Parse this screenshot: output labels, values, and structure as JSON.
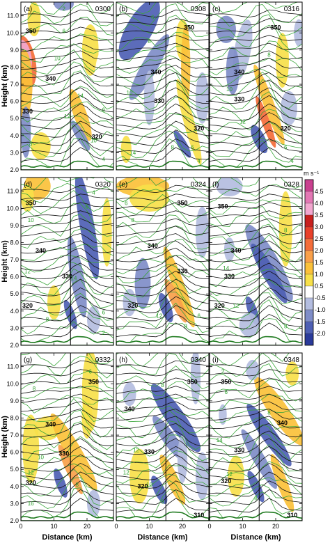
{
  "chart_data": {
    "type": "heatmap",
    "ylabel": "Height (km)",
    "xlabel": "Distance (km)",
    "y_ticks": [
      "2.0",
      "3.0",
      "4.0",
      "5.0",
      "6.0",
      "7.0",
      "8.0",
      "9.0",
      "10.0",
      "11.0"
    ],
    "ylim": [
      2.0,
      11.8
    ],
    "x_ticks": [
      "0",
      "10",
      "20"
    ],
    "xlim": [
      0,
      28
    ],
    "reference_x": 15,
    "colorbar": {
      "unit": "m s⁻¹",
      "labels": [
        "4.5",
        "4.0",
        "3.5",
        "3.0",
        "2.5",
        "2.0",
        "1.5",
        "1.0",
        "0.5",
        "-0.5",
        "-1.0",
        "-1.5",
        "-2.0"
      ],
      "colors": [
        "#c9408f",
        "#e377b4",
        "#f2a7cf",
        "#c8201e",
        "#e8402a",
        "#f46d3a",
        "#f9a04a",
        "#fbc13a",
        "#f7e04a",
        "#ffffff",
        "#b4bde0",
        "#7f8dc8",
        "#4e5fb4",
        "#2a3a9a"
      ]
    },
    "panels": [
      {
        "label": "(a)",
        "time": "0300",
        "theta_labels": [
          {
            "text": "350",
            "x": 3,
            "y": 10.0
          },
          {
            "text": "340",
            "x": 9,
            "y": 7.2
          },
          {
            "text": "330",
            "x": 2,
            "y": 5.3
          },
          {
            "text": "320",
            "x": 23,
            "y": 3.8
          }
        ],
        "green_labels": [
          {
            "text": "2",
            "x": 13,
            "y": 11.3
          },
          {
            "text": "6",
            "x": 13,
            "y": 10.0
          },
          {
            "text": "10",
            "x": 11,
            "y": 8.4
          },
          {
            "text": "14",
            "x": 18,
            "y": 6.2
          },
          {
            "text": "12",
            "x": 14,
            "y": 5.0
          },
          {
            "text": "8",
            "x": 3,
            "y": 3.4
          },
          {
            "text": "10",
            "x": 22,
            "y": 3.6
          },
          {
            "text": "6",
            "x": 25,
            "y": 5.4
          },
          {
            "text": "4",
            "x": 25,
            "y": 2.5
          }
        ]
      },
      {
        "label": "(b)",
        "time": "0308",
        "theta_labels": [
          {
            "text": "350",
            "x": 22,
            "y": 10.2
          },
          {
            "text": "340",
            "x": 12,
            "y": 7.6
          },
          {
            "text": "330",
            "x": 13,
            "y": 5.9
          },
          {
            "text": "320",
            "x": 25,
            "y": 4.3
          }
        ],
        "green_labels": [
          {
            "text": "6",
            "x": 11,
            "y": 10.8
          },
          {
            "text": "8",
            "x": 10,
            "y": 9.4
          },
          {
            "text": "10",
            "x": 4,
            "y": 6.4
          },
          {
            "text": "8",
            "x": 17,
            "y": 3.2
          },
          {
            "text": "14",
            "x": 5,
            "y": 2.9
          },
          {
            "text": "6",
            "x": 23,
            "y": 3.2
          },
          {
            "text": "4",
            "x": 25,
            "y": 2.4
          }
        ]
      },
      {
        "label": "(c)",
        "time": "0316",
        "theta_labels": [
          {
            "text": "350",
            "x": 20,
            "y": 10.2
          },
          {
            "text": "340",
            "x": 9,
            "y": 7.6
          },
          {
            "text": "330",
            "x": 9,
            "y": 6.0
          },
          {
            "text": "320",
            "x": 23,
            "y": 4.3
          }
        ],
        "green_labels": [
          {
            "text": "8",
            "x": 18,
            "y": 8.6
          },
          {
            "text": "10",
            "x": 6,
            "y": 6.6
          },
          {
            "text": "12",
            "x": 10,
            "y": 4.7
          },
          {
            "text": "6",
            "x": 23,
            "y": 3.2
          },
          {
            "text": "4",
            "x": 25,
            "y": 2.4
          }
        ]
      },
      {
        "label": "(d)",
        "time": "0320",
        "theta_labels": [
          {
            "text": "350",
            "x": 3,
            "y": 10.2
          },
          {
            "text": "340",
            "x": 6,
            "y": 7.4
          },
          {
            "text": "330",
            "x": 14,
            "y": 5.9
          },
          {
            "text": "320",
            "x": 2,
            "y": 4.2
          }
        ],
        "green_labels": [
          {
            "text": "4",
            "x": 22,
            "y": 10.8
          },
          {
            "text": "6",
            "x": 20,
            "y": 10.0
          },
          {
            "text": "10",
            "x": 3,
            "y": 9.2
          },
          {
            "text": "14",
            "x": 16,
            "y": 5.8
          },
          {
            "text": "12",
            "x": 2,
            "y": 6.2
          },
          {
            "text": "8",
            "x": 8,
            "y": 3.4
          },
          {
            "text": "6",
            "x": 25,
            "y": 3.8
          },
          {
            "text": "2",
            "x": 25,
            "y": 2.6
          }
        ]
      },
      {
        "label": "(e)",
        "time": "0324",
        "theta_labels": [
          {
            "text": "350",
            "x": 20,
            "y": 10.2
          },
          {
            "text": "340",
            "x": 11,
            "y": 7.7
          },
          {
            "text": "330",
            "x": 20,
            "y": 6.2
          },
          {
            "text": "320",
            "x": 5,
            "y": 4.2
          }
        ],
        "green_labels": [
          {
            "text": "6",
            "x": 3,
            "y": 10.2
          },
          {
            "text": "8",
            "x": 5,
            "y": 9.2
          },
          {
            "text": "8",
            "x": 21,
            "y": 3.0
          },
          {
            "text": "12",
            "x": 13,
            "y": 3.6
          },
          {
            "text": "6",
            "x": 25,
            "y": 3.6
          }
        ]
      },
      {
        "label": "(f)",
        "time": "0328",
        "theta_labels": [
          {
            "text": "350",
            "x": 4,
            "y": 10.0
          },
          {
            "text": "340",
            "x": 8,
            "y": 7.4
          },
          {
            "text": "330",
            "x": 6,
            "y": 5.9
          },
          {
            "text": "320",
            "x": 3,
            "y": 4.2
          }
        ],
        "green_labels": [
          {
            "text": "8",
            "x": 23,
            "y": 8.6
          },
          {
            "text": "14",
            "x": 5,
            "y": 6.4
          },
          {
            "text": "12",
            "x": 8,
            "y": 4.2
          },
          {
            "text": "8",
            "x": 23,
            "y": 3.0
          }
        ]
      },
      {
        "label": "(g)",
        "time": "0332",
        "theta_labels": [
          {
            "text": "350",
            "x": 22,
            "y": 10.0
          },
          {
            "text": "340",
            "x": 9,
            "y": 7.5
          },
          {
            "text": "330",
            "x": 13,
            "y": 5.8
          },
          {
            "text": "320",
            "x": 3,
            "y": 4.1
          }
        ],
        "green_labels": [
          {
            "text": "4",
            "x": 23,
            "y": 11.2
          },
          {
            "text": "6",
            "x": 21,
            "y": 10.6
          },
          {
            "text": "8",
            "x": 4,
            "y": 9.6
          },
          {
            "text": "10",
            "x": 6,
            "y": 5.6
          },
          {
            "text": "12",
            "x": 3,
            "y": 4.7
          },
          {
            "text": "16",
            "x": 3,
            "y": 2.9
          },
          {
            "text": "8",
            "x": 17,
            "y": 4.0
          }
        ]
      },
      {
        "label": "(h)",
        "time": "0340",
        "theta_labels": [
          {
            "text": "350",
            "x": 23,
            "y": 10.0
          },
          {
            "text": "340",
            "x": 4,
            "y": 8.4
          },
          {
            "text": "330",
            "x": 10,
            "y": 5.9
          },
          {
            "text": "320",
            "x": 8,
            "y": 3.9
          },
          {
            "text": "310",
            "x": 25,
            "y": 2.2
          }
        ],
        "green_labels": [
          {
            "text": "8",
            "x": 14,
            "y": 9.8
          },
          {
            "text": "12",
            "x": 6,
            "y": 6.0
          },
          {
            "text": "12",
            "x": 3,
            "y": 4.7
          },
          {
            "text": "10",
            "x": 10,
            "y": 4.0
          },
          {
            "text": "8",
            "x": 14,
            "y": 3.0
          }
        ]
      },
      {
        "label": "(i)",
        "time": "0348",
        "theta_labels": [
          {
            "text": "350",
            "x": 5,
            "y": 10.0
          },
          {
            "text": "340",
            "x": 22,
            "y": 7.6
          },
          {
            "text": "330",
            "x": 9,
            "y": 6.0
          },
          {
            "text": "320",
            "x": 5,
            "y": 4.2
          },
          {
            "text": "310",
            "x": 25,
            "y": 2.2
          }
        ],
        "green_labels": [
          {
            "text": "2",
            "x": 4,
            "y": 10.6
          },
          {
            "text": "6",
            "x": 5,
            "y": 9.4
          },
          {
            "text": "8",
            "x": 18,
            "y": 8.2
          },
          {
            "text": "14",
            "x": 3,
            "y": 6.6
          },
          {
            "text": "12",
            "x": 6,
            "y": 4.6
          },
          {
            "text": "8",
            "x": 14,
            "y": 3.2
          }
        ]
      }
    ]
  }
}
